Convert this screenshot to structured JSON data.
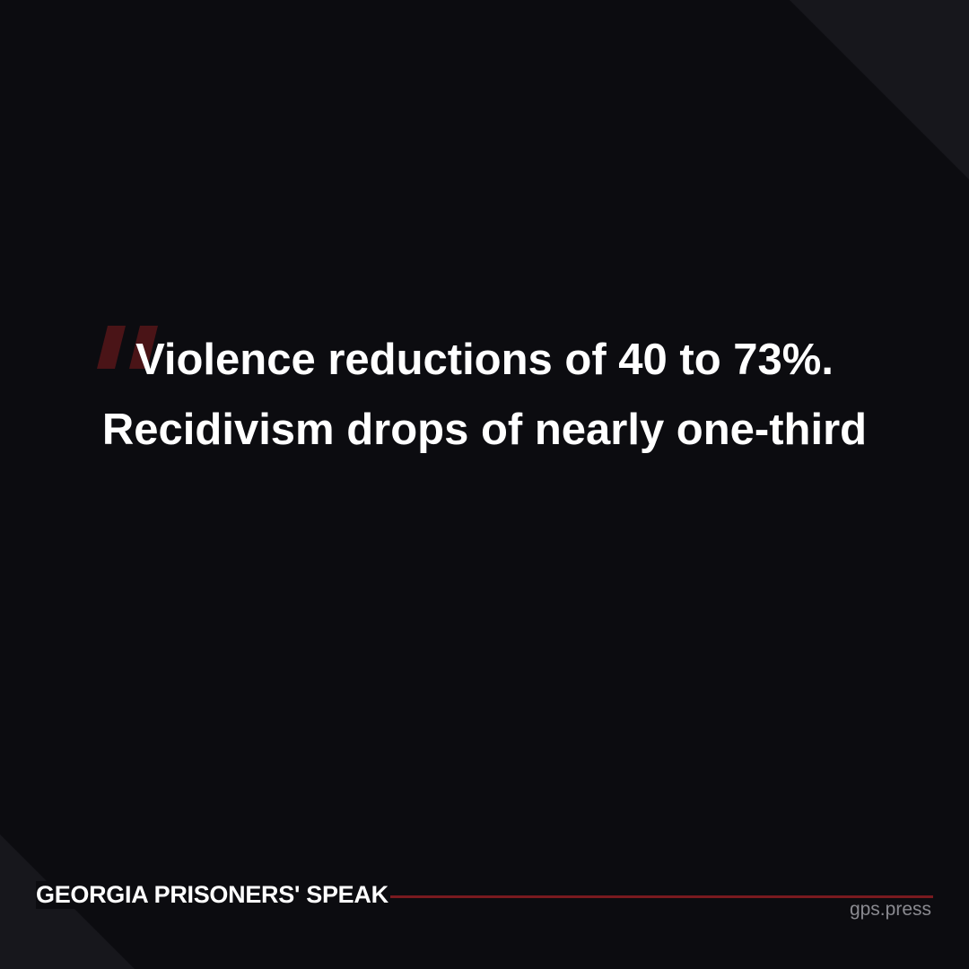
{
  "quote": {
    "text": "Violence reductions of 40 to 73%. Recidivism drops of nearly one-third",
    "mark_color": "#4a1417"
  },
  "footer": {
    "brand": "GEORGIA PRISONERS' SPEAK",
    "site": "gps.press",
    "accent_color": "#7a1a1f"
  }
}
